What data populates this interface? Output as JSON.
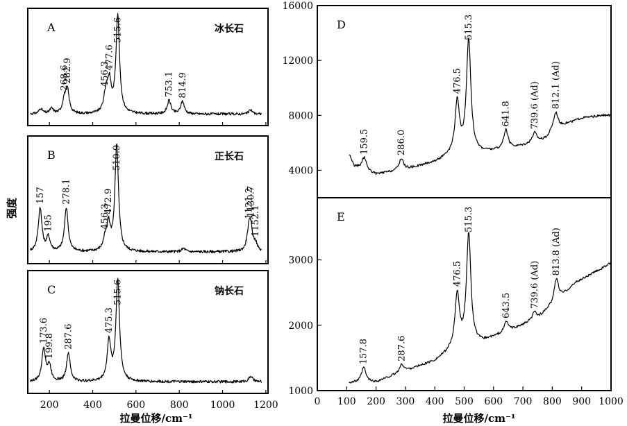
{
  "ylabel": "强度",
  "xlabel_left": "拉曼位移/cm⁻¹",
  "xlabel_right": "拉曼位移/cm⁻¹",
  "chart_data": [
    {
      "id": "A",
      "type": "line",
      "panel_label": "A",
      "mineral": "冰长石",
      "xlim": [
        100,
        1210
      ],
      "peaks": [
        {
          "x": 160,
          "h": 0.05
        },
        {
          "x": 210,
          "h": 0.05
        },
        {
          "x": 268.6,
          "h": 0.12,
          "label": "268.6"
        },
        {
          "x": 282.9,
          "h": 0.22,
          "label": "282.9"
        },
        {
          "x": 456.3,
          "h": 0.08,
          "label": "456.3"
        },
        {
          "x": 465,
          "h": 0.14
        },
        {
          "x": 477.6,
          "h": 0.26,
          "label": "477.6"
        },
        {
          "x": 515.6,
          "h": 0.93,
          "label": "515.6"
        },
        {
          "x": 753.1,
          "h": 0.13,
          "label": "753.1"
        },
        {
          "x": 814.9,
          "h": 0.12,
          "label": "814.9"
        },
        {
          "x": 1130,
          "h": 0.04
        }
      ]
    },
    {
      "id": "B",
      "type": "line",
      "panel_label": "B",
      "mineral": "正长石",
      "xlim": [
        100,
        1210
      ],
      "peaks": [
        {
          "x": 157,
          "h": 0.38,
          "label": "157"
        },
        {
          "x": 195,
          "h": 0.12,
          "label": "195"
        },
        {
          "x": 278.1,
          "h": 0.38,
          "label": "278.1"
        },
        {
          "x": 456.3,
          "h": 0.08,
          "label": "456.3"
        },
        {
          "x": 472.9,
          "h": 0.22,
          "label": "472.9"
        },
        {
          "x": 510.9,
          "h": 0.92,
          "label": "510.9"
        },
        {
          "x": 820,
          "h": 0.03
        },
        {
          "x": 1121.2,
          "h": 0.16,
          "label": "1121.2"
        },
        {
          "x": 1130.7,
          "h": 0.18,
          "label": "1130.7"
        },
        {
          "x": 1152.1,
          "h": 0.06,
          "label": "1152.1"
        }
      ]
    },
    {
      "id": "C",
      "type": "line",
      "panel_label": "C",
      "mineral": "钠长石",
      "xlim": [
        100,
        1210
      ],
      "ticks": [
        200,
        400,
        600,
        800,
        1000,
        1200
      ],
      "peaks": [
        {
          "x": 173.6,
          "h": 0.3,
          "label": "173.6"
        },
        {
          "x": 199.8,
          "h": 0.14,
          "label": "199.8"
        },
        {
          "x": 287.6,
          "h": 0.26,
          "label": "287.6"
        },
        {
          "x": 475.3,
          "h": 0.36,
          "label": "475.3"
        },
        {
          "x": 515.6,
          "h": 0.92,
          "label": "515.6"
        },
        {
          "x": 1130,
          "h": 0.05
        }
      ]
    },
    {
      "id": "D",
      "type": "line",
      "panel_label": "D",
      "xlim": [
        0,
        1000
      ],
      "ylim": [
        2000,
        16000
      ],
      "yticks": [
        4000,
        8000,
        12000,
        16000
      ],
      "baseline": [
        [
          110,
          5100
        ],
        [
          125,
          4300
        ],
        [
          200,
          3700
        ],
        [
          300,
          4050
        ],
        [
          400,
          4600
        ],
        [
          460,
          5100
        ],
        [
          560,
          5300
        ],
        [
          640,
          5500
        ],
        [
          720,
          5900
        ],
        [
          780,
          6300
        ],
        [
          800,
          6900
        ],
        [
          840,
          7300
        ],
        [
          900,
          7800
        ],
        [
          980,
          8000
        ]
      ],
      "peaks": [
        {
          "x": 159.5,
          "h": 900,
          "label": "159.5"
        },
        {
          "x": 286.0,
          "h": 850,
          "label": "286.0"
        },
        {
          "x": 476.5,
          "h": 3800,
          "label": "476.5"
        },
        {
          "x": 515.3,
          "h": 8300,
          "label": "515.3"
        },
        {
          "x": 641.8,
          "h": 1400,
          "label": "641.8"
        },
        {
          "x": 739.6,
          "h": 700,
          "label": "739.6 (Ad)"
        },
        {
          "x": 812.1,
          "h": 1200,
          "label": "812.1 (Ad)"
        }
      ]
    },
    {
      "id": "E",
      "type": "line",
      "panel_label": "E",
      "xlim": [
        0,
        1000
      ],
      "ylim": [
        1000,
        3950
      ],
      "yticks": [
        1000,
        2000,
        3000
      ],
      "xticks": [
        0,
        100,
        200,
        300,
        400,
        500,
        600,
        700,
        800,
        900,
        1000
      ],
      "baseline": [
        [
          110,
          1120
        ],
        [
          200,
          1130
        ],
        [
          300,
          1300
        ],
        [
          400,
          1450
        ],
        [
          460,
          1620
        ],
        [
          550,
          1720
        ],
        [
          650,
          1900
        ],
        [
          750,
          2100
        ],
        [
          800,
          2300
        ],
        [
          880,
          2650
        ],
        [
          1000,
          2950
        ]
      ],
      "peaks": [
        {
          "x": 157.8,
          "h": 230,
          "label": "157.8"
        },
        {
          "x": 287.6,
          "h": 120,
          "label": "287.6"
        },
        {
          "x": 476.5,
          "h": 820,
          "label": "476.5"
        },
        {
          "x": 515.3,
          "h": 1720,
          "label": "515.3"
        },
        {
          "x": 643.5,
          "h": 160,
          "label": "643.5"
        },
        {
          "x": 739.6,
          "h": 120,
          "label": "739.6 (Ad)"
        },
        {
          "x": 813.8,
          "h": 350,
          "label": "813.8 (Ad)"
        }
      ]
    }
  ]
}
